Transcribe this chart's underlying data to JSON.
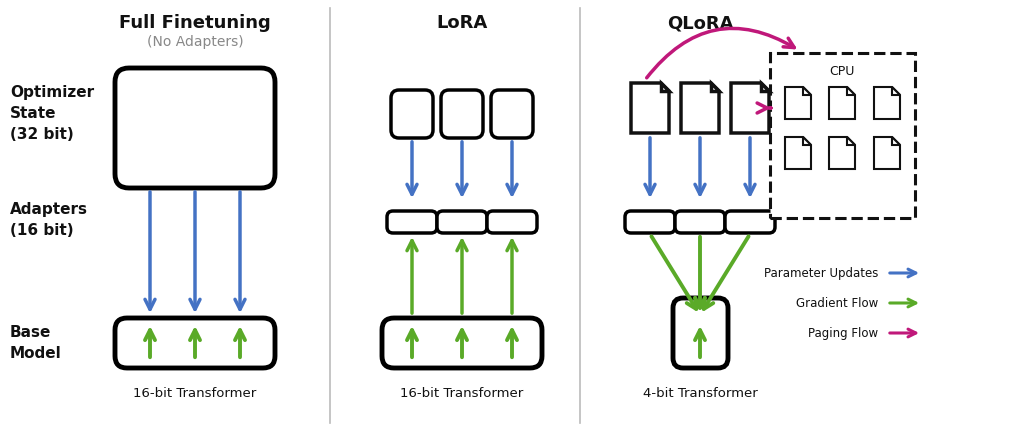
{
  "bg_color": "#ffffff",
  "title_full": "Full Finetuning",
  "title_lora": "LoRA",
  "title_qlora": "QLoRA",
  "subtitle_full": "(No Adapters)",
  "label_optimizer": "Optimizer\nState\n(32 bit)",
  "label_adapters": "Adapters\n(16 bit)",
  "label_base": "Base\nModel",
  "label_full_transformer": "16-bit Transformer",
  "label_lora_transformer": "16-bit Transformer",
  "label_qlora_transformer": "4-bit Transformer",
  "label_cpu": "CPU",
  "legend_param": "Parameter Updates",
  "legend_grad": "Gradient Flow",
  "legend_paging": "Paging Flow",
  "color_blue": "#4472c4",
  "color_green": "#5aaa28",
  "color_pink": "#c0187a",
  "color_black": "#111111",
  "color_gray": "#888888",
  "color_sep": "#bbbbbb"
}
